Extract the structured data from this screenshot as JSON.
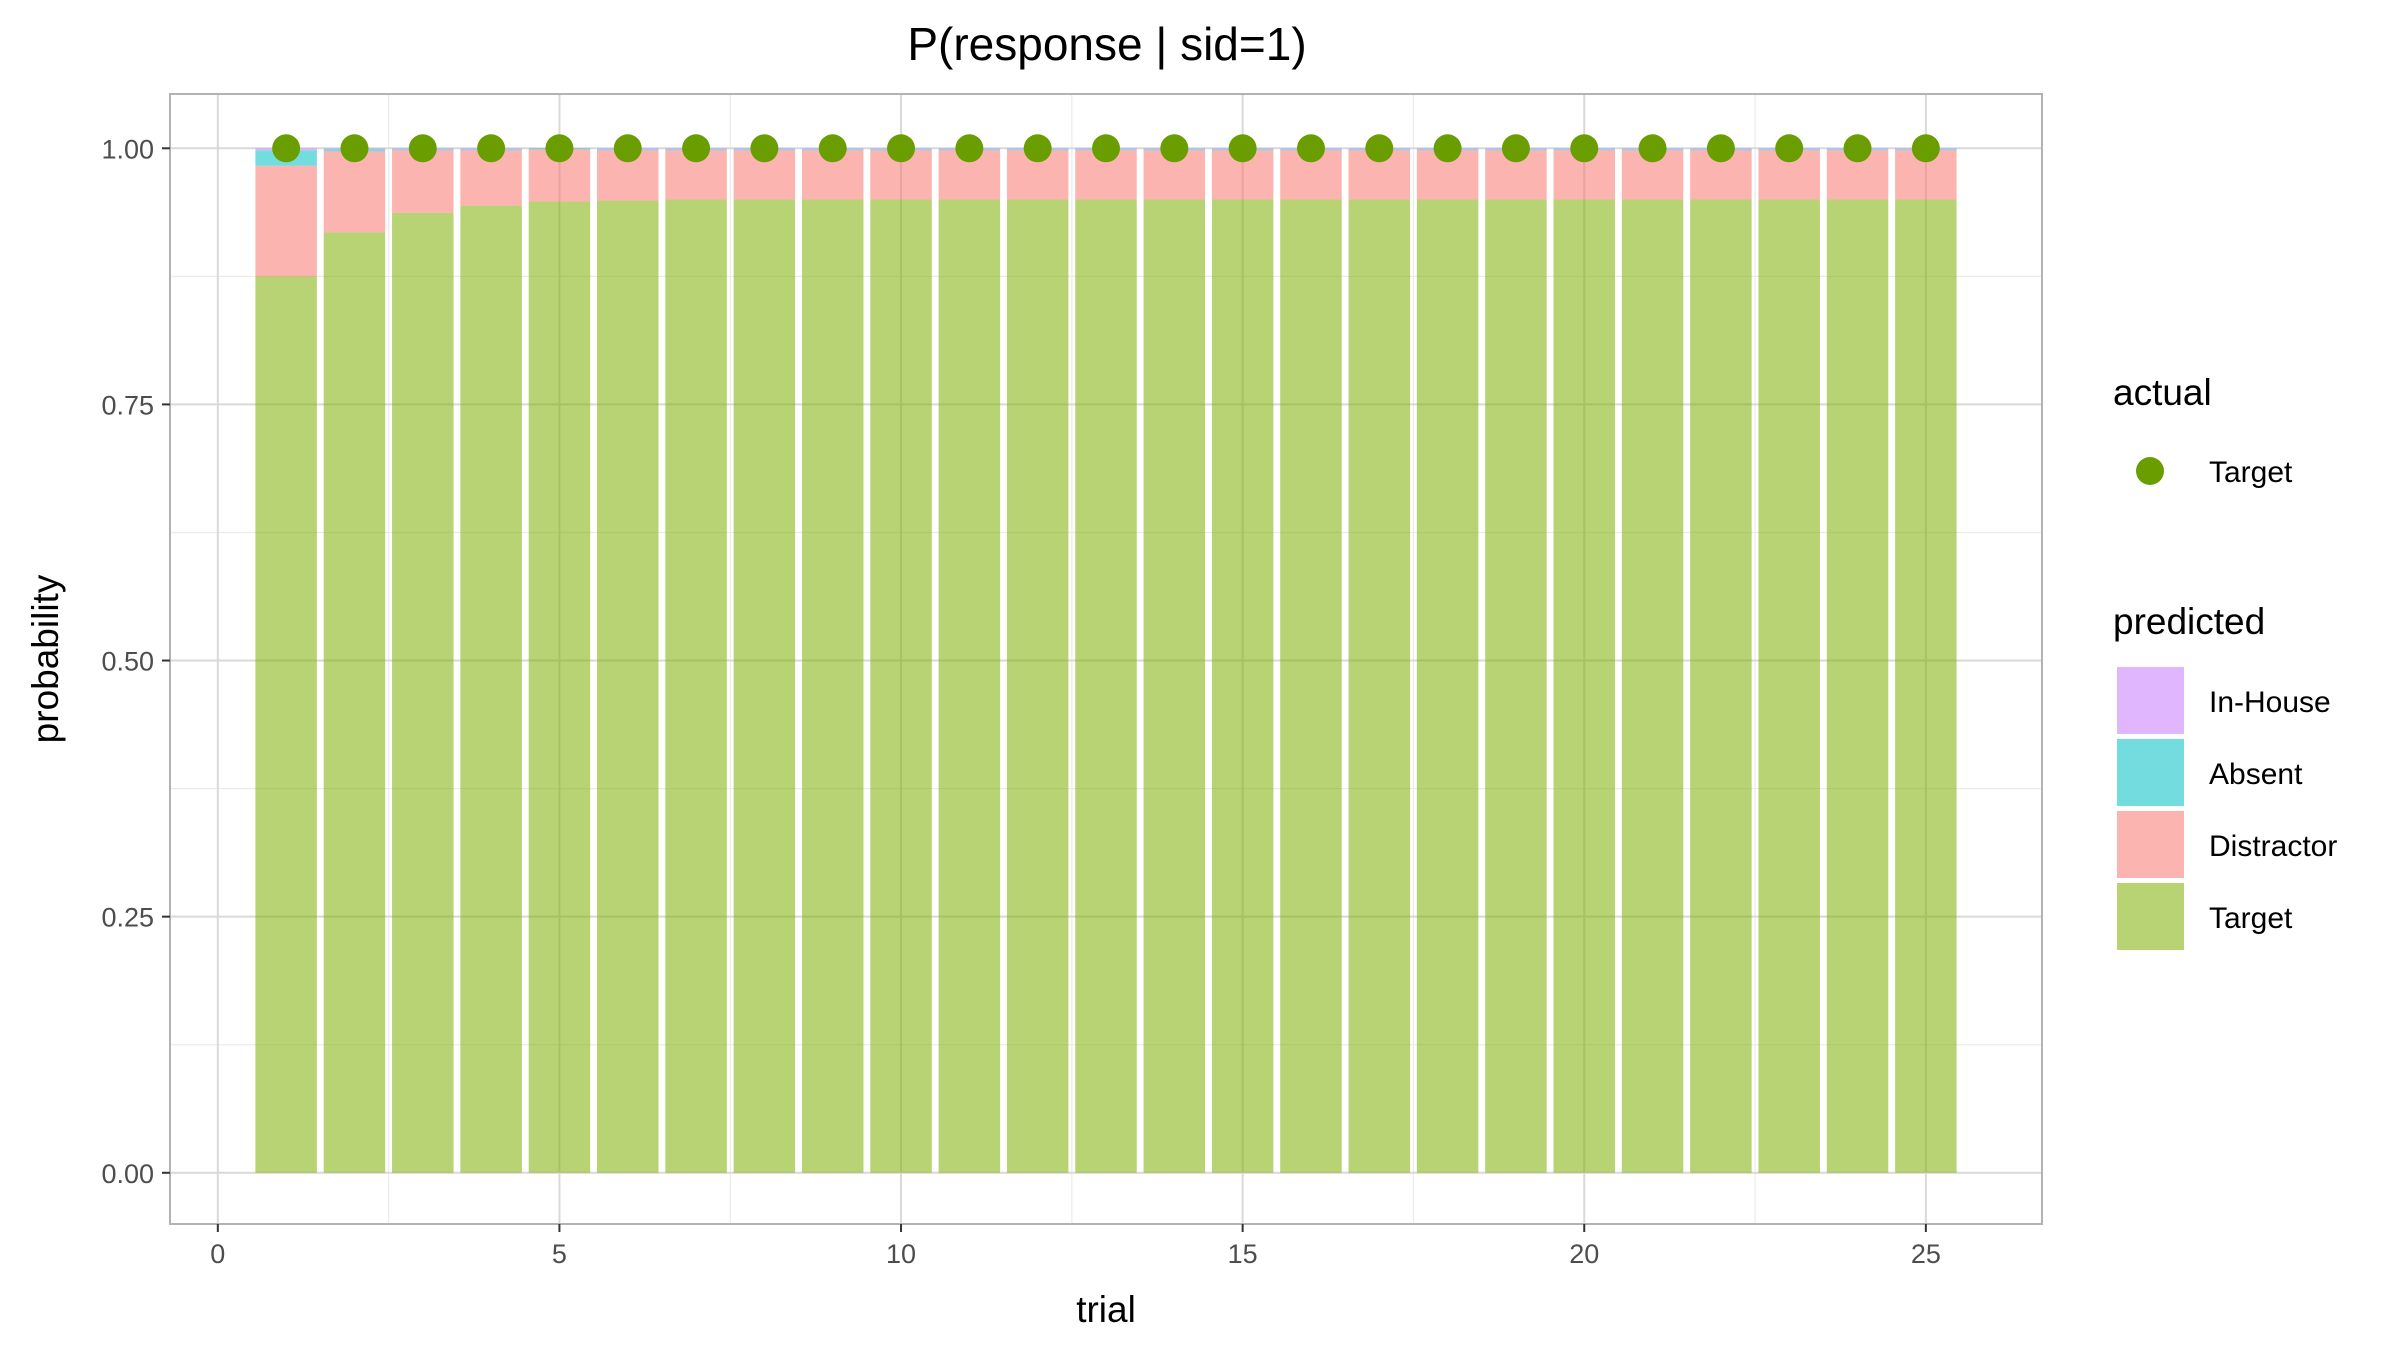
{
  "chart_data": {
    "type": "bar",
    "stacked": true,
    "title": "P(response | sid=1)",
    "xlabel": "trial",
    "ylabel": "probability",
    "xlim": [
      -0.7,
      26.7
    ],
    "ylim": [
      -0.05,
      1.053
    ],
    "x_ticks": [
      0,
      5,
      10,
      15,
      20,
      25
    ],
    "y_ticks": [
      0,
      0.25,
      0.5,
      0.75,
      1
    ],
    "x_tick_labels": [
      "0",
      "5",
      "10",
      "15",
      "20",
      "25"
    ],
    "y_tick_labels": [
      "0.00",
      "0.25",
      "0.50",
      "0.75",
      "1.00"
    ],
    "grid": true,
    "x": [
      1,
      2,
      3,
      4,
      5,
      6,
      7,
      8,
      9,
      10,
      11,
      12,
      13,
      14,
      15,
      16,
      17,
      18,
      19,
      20,
      21,
      22,
      23,
      24,
      25
    ],
    "series": [
      {
        "name": "Target",
        "color": "#7cae00",
        "values": [
          0.875,
          0.918,
          0.937,
          0.944,
          0.948,
          0.949,
          0.95,
          0.95,
          0.95,
          0.95,
          0.95,
          0.95,
          0.95,
          0.95,
          0.95,
          0.95,
          0.95,
          0.95,
          0.95,
          0.95,
          0.95,
          0.95,
          0.95,
          0.95,
          0.95
        ]
      },
      {
        "name": "Distractor",
        "color": "#f8766d",
        "values": [
          0.108,
          0.079,
          0.061,
          0.054,
          0.051,
          0.049,
          0.048,
          0.048,
          0.048,
          0.048,
          0.048,
          0.048,
          0.048,
          0.048,
          0.048,
          0.048,
          0.048,
          0.048,
          0.048,
          0.048,
          0.048,
          0.048,
          0.048,
          0.048,
          0.048
        ]
      },
      {
        "name": "Absent",
        "color": "#00bfc4",
        "values": [
          0.015,
          0.002,
          0.001,
          0.001,
          0.001,
          0.001,
          0.001,
          0.001,
          0.001,
          0.001,
          0.001,
          0.001,
          0.001,
          0.001,
          0.001,
          0.001,
          0.001,
          0.001,
          0.001,
          0.001,
          0.001,
          0.001,
          0.001,
          0.001,
          0.001
        ]
      },
      {
        "name": "In-House",
        "color": "#c77cff",
        "values": [
          0.002,
          0.001,
          0.001,
          0.001,
          0.0,
          0.001,
          0.001,
          0.001,
          0.001,
          0.001,
          0.001,
          0.001,
          0.001,
          0.001,
          0.001,
          0.001,
          0.001,
          0.001,
          0.001,
          0.001,
          0.001,
          0.001,
          0.001,
          0.001,
          0.001
        ]
      }
    ],
    "points": {
      "name": "Target",
      "color": "#6a9e00",
      "x": [
        1,
        2,
        3,
        4,
        5,
        6,
        7,
        8,
        9,
        10,
        11,
        12,
        13,
        14,
        15,
        16,
        17,
        18,
        19,
        20,
        21,
        22,
        23,
        24,
        25
      ],
      "y": [
        1,
        1,
        1,
        1,
        1,
        1,
        1,
        1,
        1,
        1,
        1,
        1,
        1,
        1,
        1,
        1,
        1,
        1,
        1,
        1,
        1,
        1,
        1,
        1,
        1
      ]
    },
    "legend": {
      "placement": "right",
      "actual": {
        "title": "actual",
        "entries": [
          {
            "label": "Target",
            "color": "#6a9e00"
          }
        ]
      },
      "predicted": {
        "title": "predicted",
        "entries": [
          {
            "label": "In-House",
            "color": "#c77cff"
          },
          {
            "label": "Absent",
            "color": "#00bfc4"
          },
          {
            "label": "Distractor",
            "color": "#f8766d"
          },
          {
            "label": "Target",
            "color": "#7cae00"
          }
        ]
      }
    }
  }
}
